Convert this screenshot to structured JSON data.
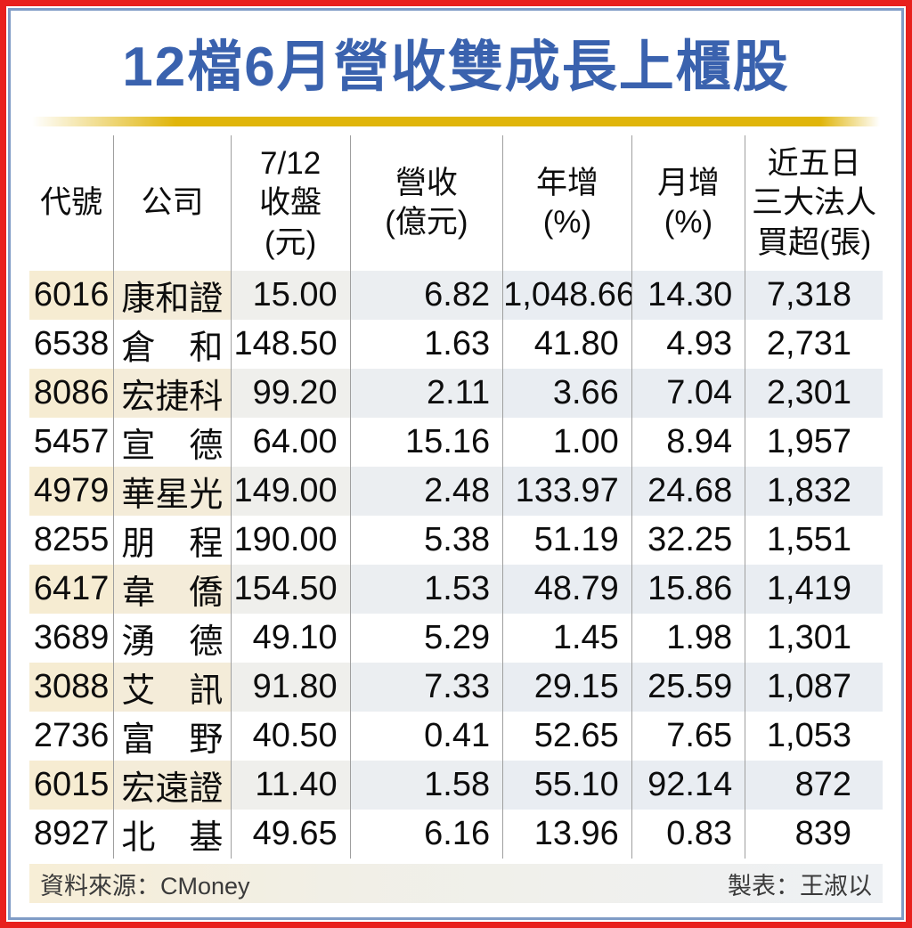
{
  "title": "12檔6月營收雙成長上櫃股",
  "colors": {
    "outer_border": "#e8201d",
    "inner_border": "#7f9cc6",
    "title_text": "#3a62ae",
    "gold_divider": "#e0b50a",
    "shaded_row_beige": "#f6ecd2",
    "shaded_row_bluegray": "#e9edf2",
    "separator_line": "#9f9f9f",
    "body_text": "#0d0d0d"
  },
  "table": {
    "headers": [
      {
        "id": "code",
        "lines": [
          "代號"
        ]
      },
      {
        "id": "name",
        "lines": [
          "公司"
        ]
      },
      {
        "id": "close",
        "lines": [
          "7/12",
          "收盤",
          "(元)"
        ]
      },
      {
        "id": "revenue",
        "lines": [
          "營收",
          "(億元)"
        ]
      },
      {
        "id": "yoy",
        "lines": [
          "年增",
          "(%)"
        ]
      },
      {
        "id": "mom",
        "lines": [
          "月增",
          "(%)"
        ]
      },
      {
        "id": "netbuy",
        "lines": [
          "近五日",
          "三大法人",
          "買超(張)"
        ]
      }
    ],
    "rows": [
      {
        "code": "6016",
        "name": "康和證",
        "close": "15.00",
        "revenue": "6.82",
        "yoy": "1,048.66",
        "mom": "14.30",
        "net_buy": "7,318"
      },
      {
        "code": "6538",
        "name": "倉　和",
        "close": "148.50",
        "revenue": "1.63",
        "yoy": "41.80",
        "mom": "4.93",
        "net_buy": "2,731"
      },
      {
        "code": "8086",
        "name": "宏捷科",
        "close": "99.20",
        "revenue": "2.11",
        "yoy": "3.66",
        "mom": "7.04",
        "net_buy": "2,301"
      },
      {
        "code": "5457",
        "name": "宣　德",
        "close": "64.00",
        "revenue": "15.16",
        "yoy": "1.00",
        "mom": "8.94",
        "net_buy": "1,957"
      },
      {
        "code": "4979",
        "name": "華星光",
        "close": "149.00",
        "revenue": "2.48",
        "yoy": "133.97",
        "mom": "24.68",
        "net_buy": "1,832"
      },
      {
        "code": "8255",
        "name": "朋　程",
        "close": "190.00",
        "revenue": "5.38",
        "yoy": "51.19",
        "mom": "32.25",
        "net_buy": "1,551"
      },
      {
        "code": "6417",
        "name": "韋　僑",
        "close": "154.50",
        "revenue": "1.53",
        "yoy": "48.79",
        "mom": "15.86",
        "net_buy": "1,419"
      },
      {
        "code": "3689",
        "name": "湧　德",
        "close": "49.10",
        "revenue": "5.29",
        "yoy": "1.45",
        "mom": "1.98",
        "net_buy": "1,301"
      },
      {
        "code": "3088",
        "name": "艾　訊",
        "close": "91.80",
        "revenue": "7.33",
        "yoy": "29.15",
        "mom": "25.59",
        "net_buy": "1,087"
      },
      {
        "code": "2736",
        "name": "富　野",
        "close": "40.50",
        "revenue": "0.41",
        "yoy": "52.65",
        "mom": "7.65",
        "net_buy": "1,053"
      },
      {
        "code": "6015",
        "name": "宏遠證",
        "close": "11.40",
        "revenue": "1.58",
        "yoy": "55.10",
        "mom": "92.14",
        "net_buy": "872"
      },
      {
        "code": "8927",
        "name": "北　基",
        "close": "49.65",
        "revenue": "6.16",
        "yoy": "13.96",
        "mom": "0.83",
        "net_buy": "839"
      }
    ]
  },
  "footer": {
    "source": "資料來源：CMoney",
    "credit": "製表：王淑以"
  },
  "chart_data": {
    "type": "table",
    "title": "12檔6月營收雙成長上櫃股",
    "columns": [
      "代號",
      "公司",
      "7/12收盤(元)",
      "營收(億元)",
      "年增(%)",
      "月增(%)",
      "近五日三大法人買超(張)"
    ],
    "rows": [
      [
        "6016",
        "康和證",
        15.0,
        6.82,
        1048.66,
        14.3,
        7318
      ],
      [
        "6538",
        "倉和",
        148.5,
        1.63,
        41.8,
        4.93,
        2731
      ],
      [
        "8086",
        "宏捷科",
        99.2,
        2.11,
        3.66,
        7.04,
        2301
      ],
      [
        "5457",
        "宣德",
        64.0,
        15.16,
        1.0,
        8.94,
        1957
      ],
      [
        "4979",
        "華星光",
        149.0,
        2.48,
        133.97,
        24.68,
        1832
      ],
      [
        "8255",
        "朋程",
        190.0,
        5.38,
        51.19,
        32.25,
        1551
      ],
      [
        "6417",
        "韋僑",
        154.5,
        1.53,
        48.79,
        15.86,
        1419
      ],
      [
        "3689",
        "湧德",
        49.1,
        5.29,
        1.45,
        1.98,
        1301
      ],
      [
        "3088",
        "艾訊",
        91.8,
        7.33,
        29.15,
        25.59,
        1087
      ],
      [
        "2736",
        "富野",
        40.5,
        0.41,
        52.65,
        7.65,
        1053
      ],
      [
        "6015",
        "宏遠證",
        11.4,
        1.58,
        55.1,
        92.14,
        872
      ],
      [
        "8927",
        "北基",
        49.65,
        6.16,
        13.96,
        0.83,
        839
      ]
    ]
  }
}
